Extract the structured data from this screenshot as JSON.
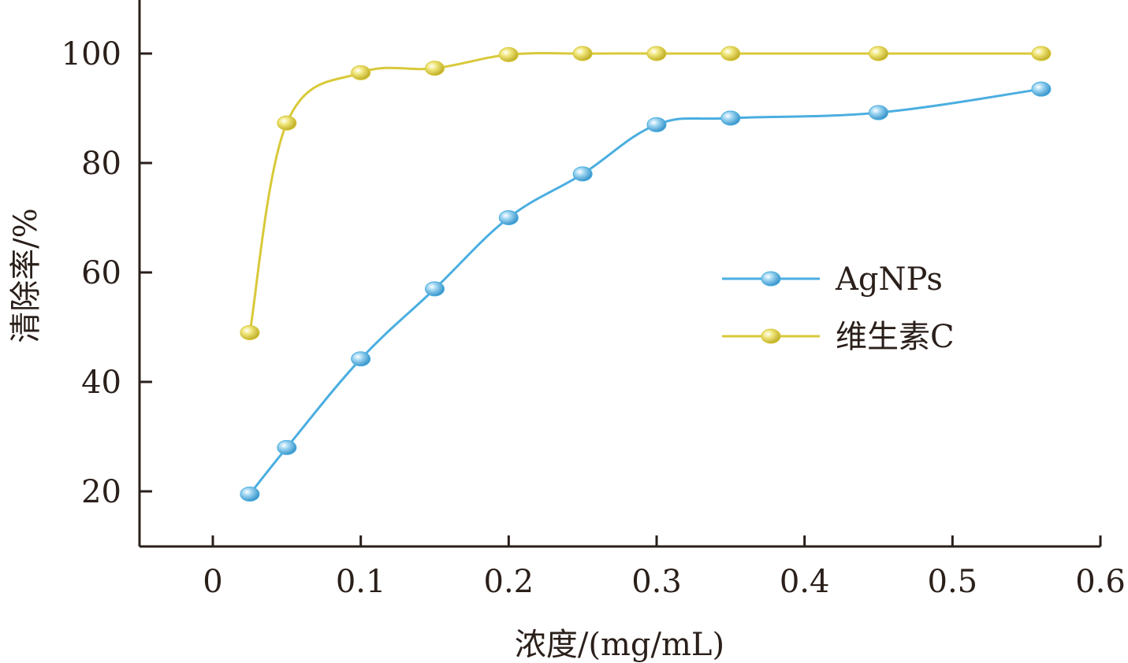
{
  "chart_data": {
    "type": "line",
    "xlabel": "浓度/(mg/mL)",
    "ylabel": "清除率/%",
    "xlim": [
      -0.05,
      0.6
    ],
    "ylim": [
      10,
      110
    ],
    "x_ticks": [
      0,
      0.1,
      0.2,
      0.3,
      0.4,
      0.5,
      0.6
    ],
    "x_tick_labels": [
      "0",
      "0.1",
      "0.2",
      "0.3",
      "0.4",
      "0.5",
      "0.6"
    ],
    "y_ticks": [
      20,
      40,
      60,
      80,
      100
    ],
    "y_tick_labels": [
      "20",
      "40",
      "60",
      "80",
      "100"
    ],
    "grid": false,
    "legend_position": "right-middle",
    "series": [
      {
        "name": "AgNPs",
        "color": "#4aaee0",
        "x": [
          0.025,
          0.05,
          0.1,
          0.15,
          0.2,
          0.25,
          0.3,
          0.35,
          0.45,
          0.56
        ],
        "y": [
          19.5,
          28,
          44.2,
          57,
          70,
          78,
          87,
          88.2,
          89.2,
          93.5
        ]
      },
      {
        "name": "维生素C",
        "color": "#d8c93a",
        "x": [
          0.025,
          0.05,
          0.1,
          0.15,
          0.2,
          0.25,
          0.3,
          0.35,
          0.45,
          0.56
        ],
        "y": [
          49,
          87.3,
          96.5,
          97.3,
          99.8,
          100,
          100,
          100,
          100,
          100
        ]
      }
    ]
  }
}
